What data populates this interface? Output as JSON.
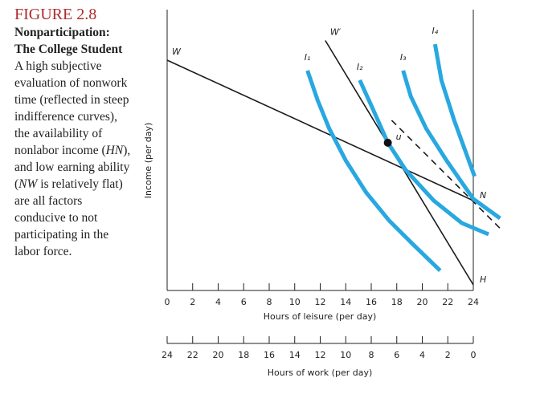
{
  "caption": {
    "figure": "FIGURE 2.8",
    "title": "Nonparticipation: The College Student",
    "body": [
      "A high subjective evaluation of nonwork time (reflected in steep indifference curves), the availability of nonlabor income (",
      "HN",
      "), and low earning ability (",
      "NW",
      " is relatively flat) are all factors conducive to not participating in the labor force."
    ]
  },
  "chart_data": {
    "type": "line",
    "xlabel": "Hours of leisure (per day)",
    "ylabel": "Income (per day)",
    "xlim": [
      0,
      24
    ],
    "xticks": [
      0,
      2,
      4,
      6,
      8,
      10,
      12,
      14,
      16,
      18,
      20,
      22,
      24
    ],
    "ylim": [
      0,
      100
    ],
    "x2label": "Hours of work (per day)",
    "x2lim": [
      24,
      0
    ],
    "x2ticks": [
      24,
      22,
      20,
      18,
      16,
      14,
      12,
      10,
      8,
      6,
      4,
      2,
      0
    ],
    "series": [
      {
        "start_label": "W",
        "end_label": "N",
        "color": "#1a1a1a",
        "x": [
          0,
          24
        ],
        "values": [
          82,
          32
        ]
      },
      {
        "start_label": "W′",
        "end_label": "H",
        "color": "#1a1a1a",
        "x": [
          12.4,
          24
        ],
        "values": [
          89,
          2
        ]
      },
      {
        "dashed": true,
        "color": "#1a1a1a",
        "x": [
          17.6,
          26.3
        ],
        "values": [
          60.6,
          21.2
        ]
      },
      {
        "name": "I₁",
        "color": "#29a8e0",
        "x": [
          11.0,
          11.8,
          12.7,
          14.0,
          15.6,
          17.4,
          19.3,
          21.4
        ],
        "values": [
          78.3,
          67.7,
          57.7,
          46.3,
          34.9,
          24.9,
          16.3,
          7.1
        ]
      },
      {
        "name": "I₂",
        "color": "#29a8e0",
        "x": [
          15.1,
          16.1,
          17.3,
          18.7,
          20.9,
          23.1,
          25.2
        ],
        "values": [
          74.9,
          64.9,
          52.6,
          42.9,
          32.0,
          24.0,
          20.0
        ]
      },
      {
        "name": "I₃",
        "color": "#29a8e0",
        "x": [
          18.5,
          19.1,
          20.3,
          21.9,
          24.0,
          26.1
        ],
        "values": [
          78.3,
          69.1,
          57.7,
          46.3,
          32.6,
          25.7
        ]
      },
      {
        "name": "I₄",
        "color": "#29a8e0",
        "x": [
          21.0,
          21.5,
          22.5,
          24.1
        ],
        "values": [
          87.7,
          74.9,
          60.6,
          40.6
        ]
      }
    ],
    "points": [
      {
        "label": "u",
        "x": 17.3,
        "y": 52.6
      }
    ]
  }
}
